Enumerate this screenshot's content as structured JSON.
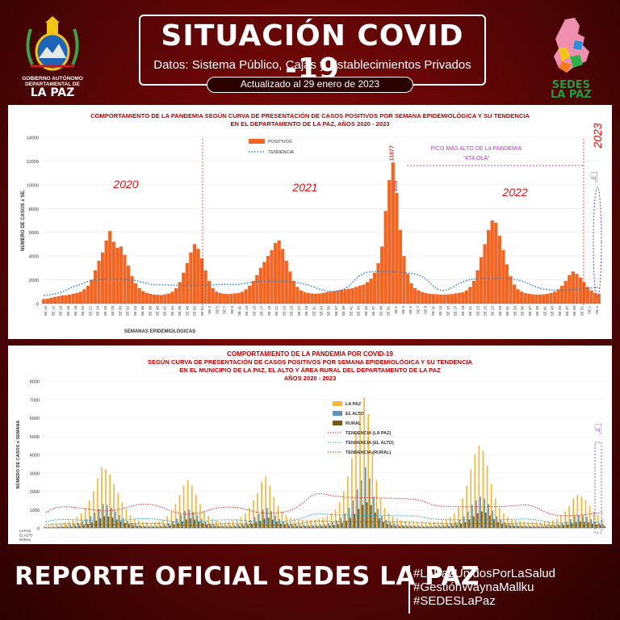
{
  "header": {
    "title": "SITUACIÓN COVID -19",
    "subtitle": "Datos: Sistema Público, Cajas y Establecimientos Privados",
    "updated": "Actualizado al  29  enero de  2023",
    "left_logo_caption": "GOBIERNO AUTÓNOMO DEPARTAMENTAL DE",
    "left_logo_name": "LA PAZ",
    "right_logo_line1": "SEDES",
    "right_logo_line2": "LA PAZ"
  },
  "chart_data": [
    {
      "type": "bar",
      "title": "COMPORTAMIENTO DE LA PANDEMIA SEGÚN CURVA DE PRESENTACIÓN DE CASOS POSITIVOS POR SEMANA EPIDEMIOLÓGICA Y SU TENDENCIA",
      "subtitle": "EN EL DEPARTAMENTO DE LA PAZ, AÑOS 2020 - 2023",
      "xlabel": "SEMANAS EPIDEMIOLÓGICAS",
      "ylabel": "NÚMERO DE CASOS x SE.",
      "ylim": [
        0,
        14000
      ],
      "yticks": [
        0,
        2000,
        4000,
        6000,
        8000,
        10000,
        12000,
        14000
      ],
      "year_labels": [
        "2020",
        "2021",
        "2022",
        "2023"
      ],
      "legend": [
        "POSITIVOS",
        "TENDENCIA"
      ],
      "legend_placement": "top-left",
      "annotation_peak": "PICO MÁS ALTO DE LA PANDEMIA",
      "annotation_wave": "\"4TA OLA\"",
      "peak_value_label": "11877",
      "peak_neighbor_label": "9308",
      "x_tick_labels": [
        "SE 10",
        "SE 12",
        "SE 14",
        "SE 16",
        "SE 18",
        "SE 20",
        "SE 22",
        "SE 24",
        "SE 26",
        "SE 28",
        "SE 30",
        "SE 32",
        "SE 34",
        "SE 36",
        "SE 38",
        "SE 40",
        "SE 42",
        "SE 44",
        "SE 46",
        "SE 48",
        "SE 50",
        "SE 52",
        "SE 3",
        "SE 5",
        "SE 7",
        "SE 9",
        "SE 11",
        "SE 13",
        "SE 15",
        "SE 17",
        "SE 19",
        "SE 21",
        "SE 23",
        "SE 25",
        "SE 27",
        "SE 29",
        "SE 31",
        "SE 33",
        "SE 35",
        "SE 37",
        "SE 39",
        "SE 41",
        "SE 43",
        "SE 45",
        "SE 47",
        "SE 49",
        "SE 51",
        "SE 1",
        "SE 3",
        "SE 5",
        "SE 7",
        "SE 9",
        "SE 11",
        "SE 13",
        "SE 15",
        "SE 17",
        "SE 19",
        "SE 21",
        "SE 23",
        "SE 25",
        "SE 27",
        "SE 29",
        "SE 31",
        "SE 33",
        "SE 35",
        "SE 37",
        "SE 39",
        "SE 41",
        "SE 43",
        "SE 45",
        "SE 47",
        "SE 49",
        "SE 51",
        "SE 1",
        "SE 3"
      ],
      "series": [
        {
          "name": "POSITIVOS",
          "color": "#f26522",
          "values": [
            380,
            420,
            480,
            560,
            620,
            680,
            700,
            760,
            820,
            900,
            1000,
            1200,
            1500,
            2000,
            2800,
            3600,
            4300,
            5300,
            6100,
            5200,
            4700,
            4800,
            4100,
            3200,
            2300,
            1700,
            1300,
            1050,
            900,
            820,
            760,
            740,
            720,
            780,
            850,
            1000,
            1300,
            1800,
            2600,
            3400,
            4300,
            5000,
            4600,
            3800,
            2800,
            1900,
            1300,
            1000,
            880,
            820,
            800,
            820,
            860,
            900,
            1000,
            1200,
            1500,
            1900,
            2400,
            3000,
            3500,
            4000,
            4500,
            5100,
            5300,
            4600,
            3600,
            2700,
            1900,
            1400,
            1100,
            950,
            880,
            850,
            830,
            850,
            900,
            950,
            1000,
            1050,
            1100,
            1150,
            1200,
            1250,
            1300,
            1400,
            1500,
            1600,
            1800,
            2100,
            2600,
            3400,
            4800,
            7800,
            10400,
            11877,
            9308,
            6200,
            4000,
            2500,
            1700,
            1300,
            1100,
            950,
            880,
            820,
            800,
            780,
            760,
            760,
            780,
            800,
            850,
            900,
            950,
            1100,
            1400,
            1900,
            2800,
            3900,
            5000,
            6200,
            7000,
            6800,
            5700,
            4500,
            3300,
            2300,
            1600,
            1200,
            1000,
            880,
            820,
            780,
            760,
            760,
            780,
            820,
            900,
            1000,
            1200,
            1500,
            1900,
            2400,
            2700,
            2500,
            2200,
            1800,
            1400,
            1100,
            900,
            800
          ]
        },
        {
          "name": "TENDENCIA",
          "color": "#3b86c6",
          "style": "dotted"
        }
      ]
    },
    {
      "type": "bar",
      "title": "COMPORTAMIENTO DE LA PANDEMIA POR COVID-19",
      "subtitle": "SEGÚN CURVA DE PRESENTACIÓN DE CASOS POSITIVOS POR SEMANA EPIDEMIOLÓGICA Y SU TENDENCIA",
      "subtitle2": "EN EL  MUNICIPIO DE LA PAZ, EL ALTO Y ÁREA RURAL DEL DEPARTAMENTO DE LA PAZ",
      "subtitle3": "AÑOS 2020 - 2023",
      "ylabel": "NÚMERO DE CASOS x SEMANA",
      "ylim": [
        0,
        8000
      ],
      "yticks": [
        0,
        1000,
        2000,
        3000,
        4000,
        5000,
        6000,
        7000,
        8000
      ],
      "legend": [
        "LA PAZ",
        "EL ALTO",
        "RURAL",
        "TENDENCIA (LA PAZ)",
        "TENDENCIA (EL ALTO)",
        "TENDENCIA (RURAL)"
      ],
      "legend_placement": "top-right",
      "table_row_labels": [
        "LA PAZ",
        "EL ALTO",
        "RURAL"
      ],
      "series": [
        {
          "name": "LA PAZ",
          "color": "#f5b63c",
          "values": [
            100,
            120,
            150,
            200,
            250,
            300,
            350,
            450,
            600,
            800,
            1100,
            1500,
            2000,
            2700,
            3300,
            3200,
            2900,
            2400,
            1900,
            1400,
            1000,
            700,
            500,
            400,
            330,
            300,
            280,
            300,
            350,
            450,
            650,
            900,
            1300,
            1800,
            2300,
            2600,
            2300,
            1800,
            1300,
            900,
            650,
            500,
            400,
            350,
            330,
            350,
            400,
            480,
            600,
            800,
            1100,
            1500,
            1900,
            2500,
            2800,
            2300,
            1700,
            1200,
            900,
            700,
            560,
            500,
            460,
            440,
            430,
            440,
            460,
            500,
            560,
            650,
            800,
            1000,
            1400,
            2000,
            2800,
            3800,
            5200,
            6300,
            7100,
            6200,
            4200,
            2600,
            1600,
            1100,
            800,
            620,
            500,
            420,
            380,
            340,
            320,
            310,
            300,
            300,
            310,
            330,
            360,
            400,
            480,
            600,
            800,
            1100,
            1600,
            2300,
            3200,
            4000,
            4500,
            4200,
            3400,
            2400,
            1600,
            1100,
            800,
            600,
            480,
            420,
            380,
            350,
            330,
            320,
            320,
            330,
            350,
            380,
            420,
            500,
            650,
            900,
            1200,
            1600,
            1800,
            1700,
            1500,
            1200,
            900,
            700,
            500
          ]
        },
        {
          "name": "EL ALTO",
          "color": "#5e93c6",
          "values": [
            50,
            60,
            70,
            90,
            110,
            140,
            170,
            210,
            270,
            360,
            480,
            640,
            820,
            1050,
            1300,
            1250,
            1100,
            900,
            700,
            520,
            380,
            270,
            200,
            160,
            130,
            120,
            110,
            120,
            140,
            180,
            260,
            360,
            520,
            720,
            920,
            1000,
            880,
            690,
            500,
            350,
            250,
            200,
            160,
            140,
            130,
            140,
            160,
            190,
            240,
            320,
            440,
            600,
            760,
            1000,
            1100,
            920,
            680,
            480,
            360,
            280,
            220,
            200,
            180,
            175,
            170,
            175,
            185,
            200,
            220,
            260,
            320,
            400,
            560,
            800,
            1100,
            1500,
            2100,
            2600,
            3300,
            2700,
            1700,
            1050,
            640,
            440,
            320,
            250,
            200,
            170,
            150,
            140,
            130,
            125,
            120,
            120,
            125,
            130,
            145,
            160,
            190,
            240,
            320,
            440,
            640,
            900,
            1250,
            1500,
            1700,
            1600,
            1300,
            950,
            640,
            440,
            320,
            240,
            190,
            170,
            150,
            140,
            130,
            128,
            128,
            130,
            140,
            150,
            170,
            200,
            260,
            360,
            480,
            640,
            700,
            680,
            600,
            480,
            360,
            280,
            200
          ]
        },
        {
          "name": "RURAL",
          "color": "#7a5a12",
          "values": [
            20,
            24,
            30,
            40,
            50,
            60,
            70,
            90,
            120,
            160,
            220,
            300,
            400,
            520,
            640,
            620,
            560,
            460,
            360,
            270,
            200,
            140,
            100,
            80,
            66,
            60,
            56,
            60,
            70,
            90,
            130,
            180,
            260,
            360,
            460,
            520,
            460,
            360,
            260,
            180,
            130,
            100,
            80,
            70,
            66,
            70,
            80,
            96,
            120,
            160,
            220,
            300,
            380,
            500,
            560,
            460,
            340,
            240,
            180,
            140,
            110,
            100,
            92,
            88,
            86,
            88,
            92,
            100,
            110,
            130,
            160,
            200,
            280,
            400,
            560,
            760,
            1040,
            1260,
            1400,
            1240,
            840,
            520,
            320,
            220,
            160,
            124,
            100,
            84,
            76,
            68,
            64,
            62,
            60,
            60,
            62,
            66,
            72,
            80,
            96,
            120,
            160,
            220,
            320,
            460,
            640,
            800,
            900,
            840,
            680,
            480,
            320,
            220,
            160,
            120,
            96,
            84,
            76,
            70,
            66,
            64,
            64,
            66,
            70,
            76,
            84,
            100,
            130,
            180,
            240,
            320,
            360,
            340,
            300,
            240,
            180,
            140,
            100
          ]
        },
        {
          "name": "TENDENCIA (LA PAZ)",
          "color": "#e03030",
          "style": "dotted"
        },
        {
          "name": "TENDENCIA (EL ALTO)",
          "color": "#27a6c9",
          "style": "dotted"
        },
        {
          "name": "TENDENCIA (RURAL)",
          "color": "#7a6a10",
          "style": "dotted"
        }
      ]
    }
  ],
  "footer": {
    "title": "REPORTE OFICIAL SEDES LA PAZ",
    "tag1": "#LaPazUnidosPorLaSalud",
    "tag2": "#GestiónWaynaMallku",
    "tag3": "#SEDESLaPaz"
  }
}
